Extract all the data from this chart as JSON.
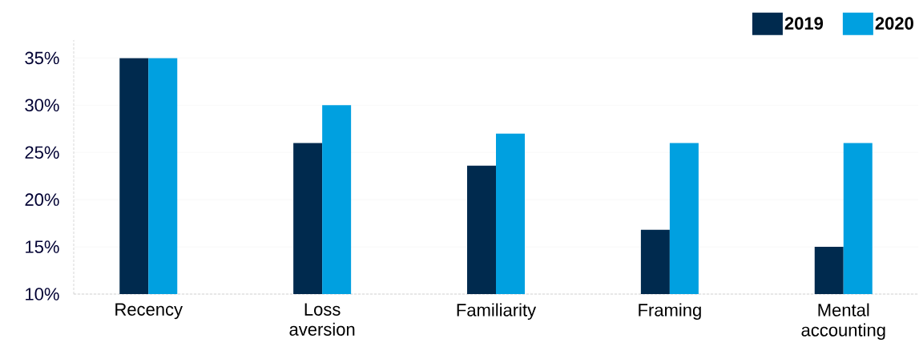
{
  "chart_data": {
    "type": "bar",
    "categories": [
      "Recency",
      "Loss aversion",
      "Familiarity",
      "Framing",
      "Mental accounting"
    ],
    "series": [
      {
        "name": "2019",
        "color": "#002a4e",
        "values": [
          35,
          26,
          23.6,
          16.8,
          15
        ]
      },
      {
        "name": "2020",
        "color": "#00a0e0",
        "values": [
          35,
          30,
          27,
          26,
          26
        ]
      }
    ],
    "ylim": [
      10,
      36.9
    ],
    "yticks": [
      {
        "value": 10,
        "label": "10%"
      },
      {
        "value": 15,
        "label": "15%"
      },
      {
        "value": 20,
        "label": "20%"
      },
      {
        "value": 25,
        "label": "25%"
      },
      {
        "value": 30,
        "label": "30%"
      },
      {
        "value": 35,
        "label": "35%"
      }
    ],
    "grid": "y",
    "legend": "top right"
  }
}
